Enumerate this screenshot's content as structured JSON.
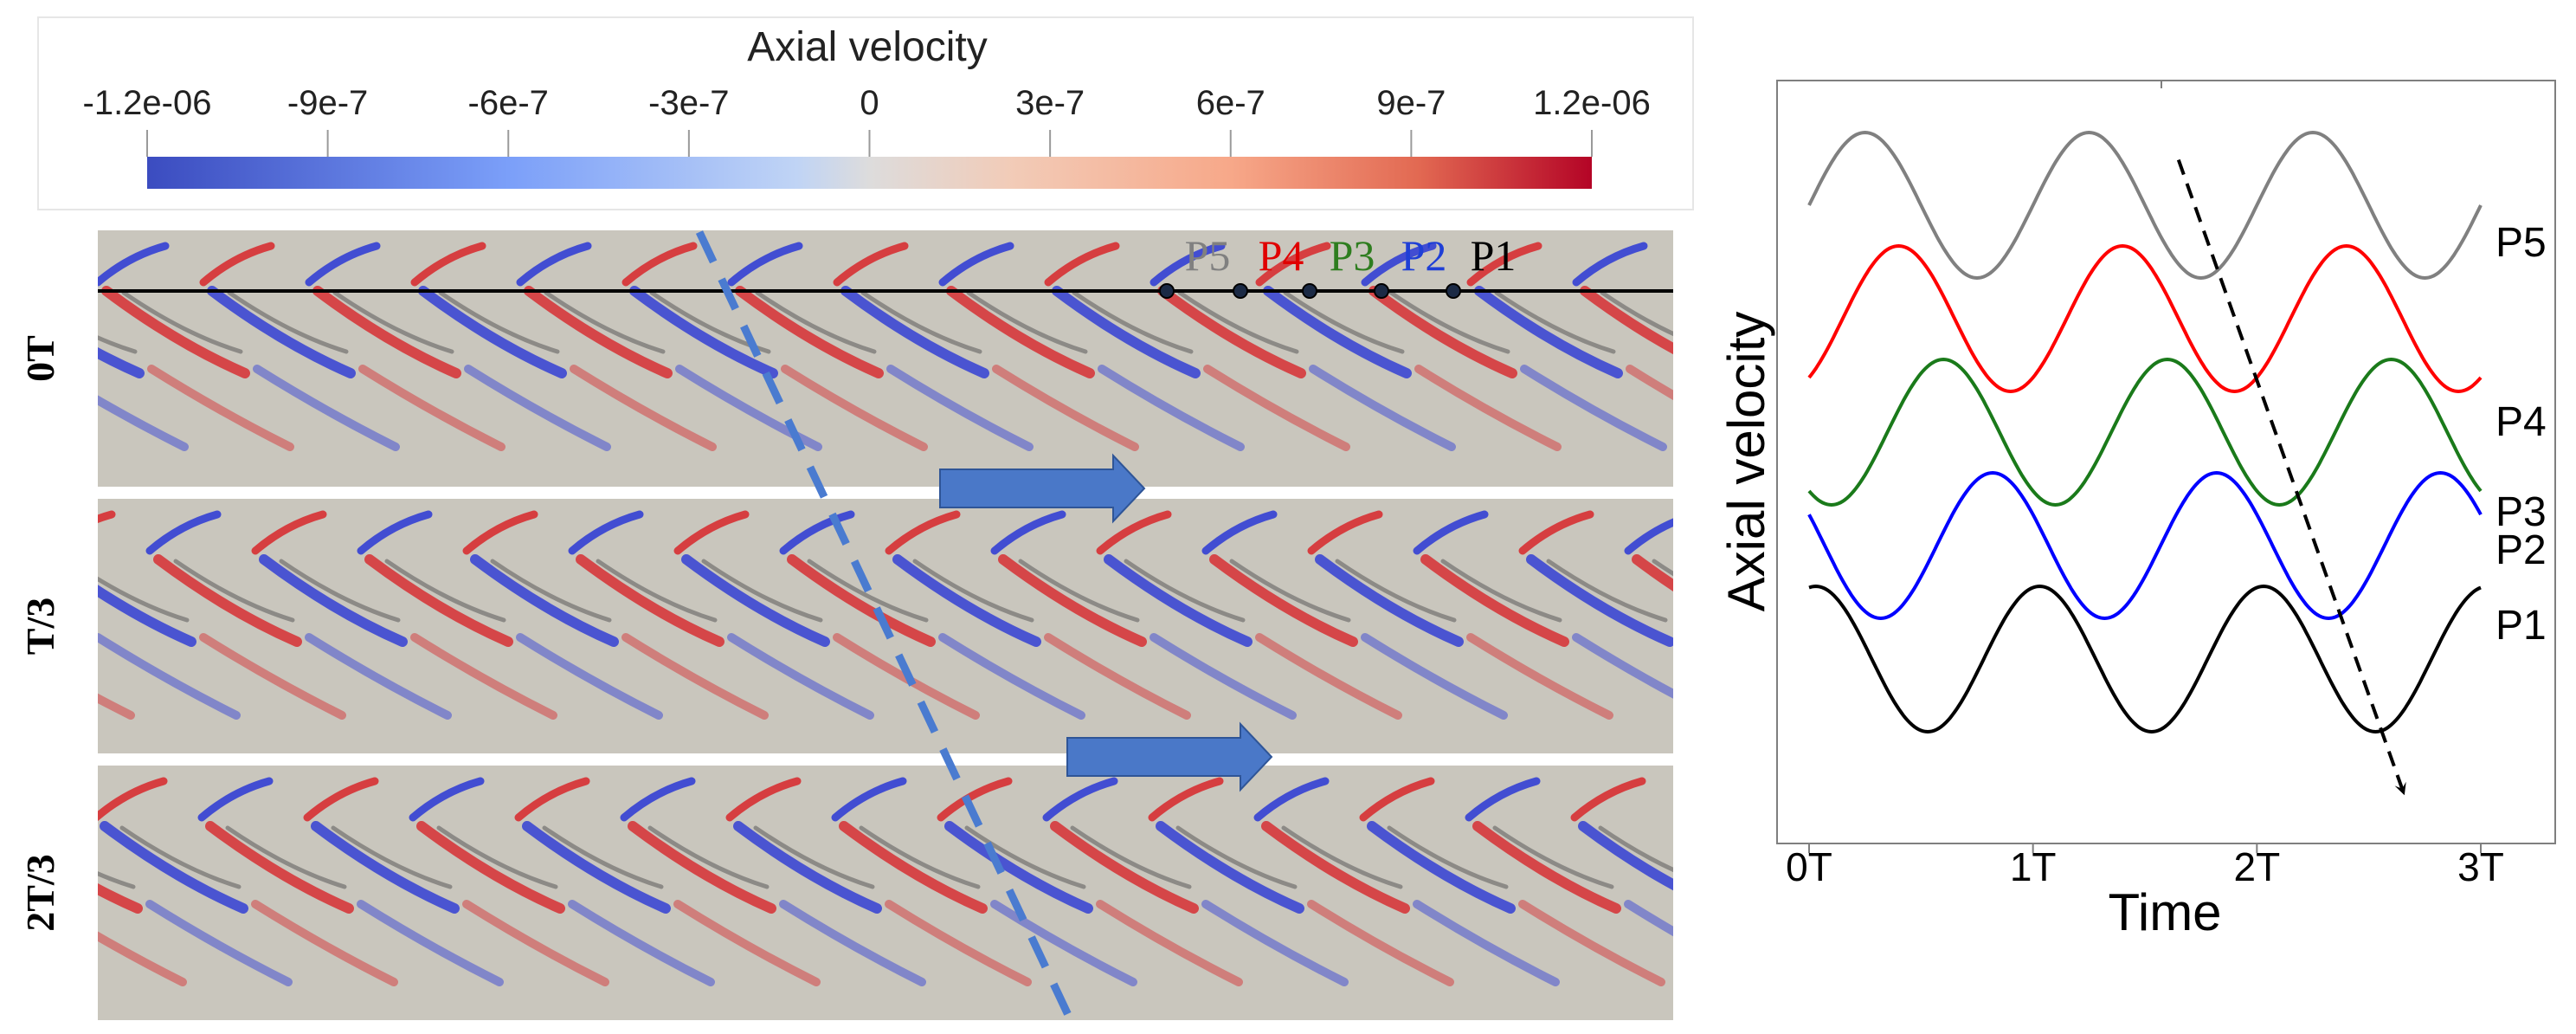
{
  "colorbar": {
    "title": "Axial velocity",
    "ticks": [
      "-1.2e-06",
      "-9e-7",
      "-6e-7",
      "-3e-7",
      "0",
      "3e-7",
      "6e-7",
      "9e-7",
      "1.2e-06"
    ],
    "range": [
      -1.2e-06,
      1.2e-06
    ],
    "colors": {
      "low": "#3b4cc0",
      "mid": "#dddcdc",
      "high": "#b40426"
    }
  },
  "panels": [
    {
      "label": "0T"
    },
    {
      "label": "T/3"
    },
    {
      "label": "2T/3"
    }
  ],
  "probes": [
    {
      "label": "P5",
      "color": "#808080"
    },
    {
      "label": "P4",
      "color": "#e00000"
    },
    {
      "label": "P3",
      "color": "#2e7d1f"
    },
    {
      "label": "P2",
      "color": "#1f3fd6"
    },
    {
      "label": "P1",
      "color": "#000000"
    }
  ],
  "colors": {
    "background": "#c9c6bd",
    "dashed_line": "#4a7bd0",
    "arrow": "#4a78c8"
  },
  "chart_data": {
    "type": "line",
    "title": "",
    "xlabel": "Time",
    "ylabel": "Axial velocity",
    "xticks": [
      "0T",
      "1T",
      "2T",
      "3T"
    ],
    "xlim": [
      0,
      3
    ],
    "series": [
      {
        "name": "P5",
        "color": "#808080",
        "offset": 4,
        "phase": 0.25,
        "label_at_end": "P5"
      },
      {
        "name": "P4",
        "color": "#ff0000",
        "offset": 3,
        "phase": 0.4,
        "label_at_end": "P4"
      },
      {
        "name": "P3",
        "color": "#1a7a1a",
        "offset": 2,
        "phase": 0.6,
        "label_at_end": "P3"
      },
      {
        "name": "P2",
        "color": "#0000ff",
        "offset": 1,
        "phase": 0.82,
        "label_at_end": "P2"
      },
      {
        "name": "P1",
        "color": "#000000",
        "offset": 0,
        "phase": 1.03,
        "label_at_end": "P1"
      }
    ],
    "amplitude": 1,
    "period": 1,
    "annotation": {
      "type": "dashed-arrow",
      "from": [
        1.65,
        4.4
      ],
      "to": [
        2.65,
        -1.15
      ]
    }
  }
}
